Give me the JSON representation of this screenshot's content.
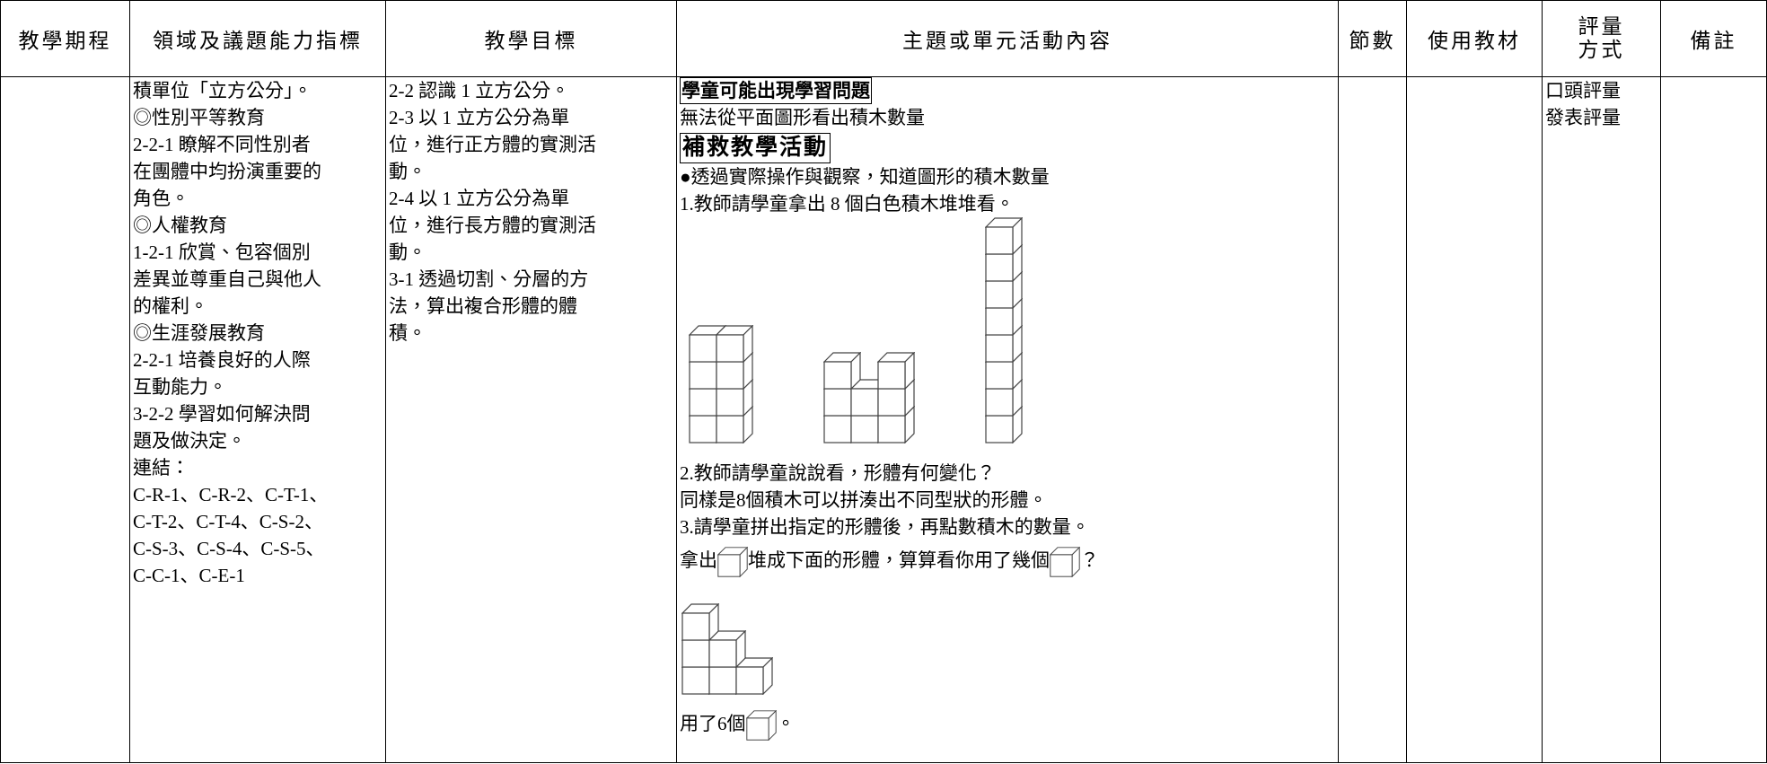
{
  "table": {
    "header": [
      "教學期程",
      "領域及議題能力指標",
      "教學目標",
      "主題或單元活動內容",
      "節數",
      "使用教材",
      "評量方式",
      "備註"
    ],
    "indicators": [
      "積單位「立方公分」。",
      "◎性別平等教育",
      "2-2-1 瞭解不同性別者",
      "在團體中均扮演重要的",
      "角色。",
      "◎人權教育",
      "1-2-1 欣賞、包容個別",
      "差異並尊重自己與他人",
      "的權利。",
      "◎生涯發展教育",
      "2-2-1 培養良好的人際",
      "互動能力。",
      "3-2-2 學習如何解決問",
      "題及做決定。",
      "連結：",
      "C-R-1、C-R-2、C-T-1、",
      "C-T-2、C-T-4、C-S-2、",
      "C-S-3、C-S-4、C-S-5、",
      "C-C-1、C-E-1"
    ],
    "objectives": [
      "2-2 認識 1 立方公分。",
      "2-3 以 1 立方公分為單",
      "位，進行正方體的實測活",
      "動。",
      "2-4 以 1 立方公分為單",
      "位，進行長方體的實測活",
      "動。",
      "3-1 透過切割、分層的方",
      "法，算出複合形體的體",
      "積。"
    ],
    "content": {
      "heading1": "學童可能出現學習問題",
      "line1": "無法從平面圖形看出積木數量",
      "heading2": "補救教學活動",
      "lines": [
        "●透過實際操作與觀察，知道圖形的積木數量",
        "1.教師請學童拿出 8 個白色積木堆堆看。"
      ],
      "lines2": [
        "2.教師請學童說說看，形體有何變化？",
        "同樣是8個積木可以拼湊出不同型狀的形體。",
        "3.請學童拼出指定的形體後，再點數積木的數量。"
      ],
      "question": [
        "拿出",
        "堆成下面的形體，算算看你用了幾個",
        "？"
      ],
      "answer": [
        "用了6個",
        "。"
      ]
    },
    "assessment": [
      "口頭評量",
      "發表評量"
    ]
  }
}
